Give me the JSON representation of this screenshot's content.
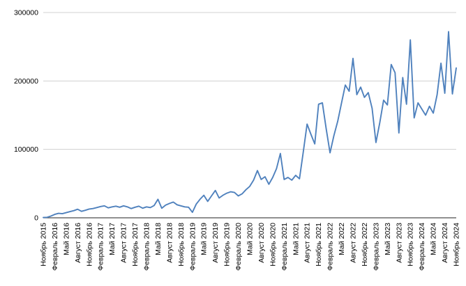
{
  "chart_data": {
    "type": "line",
    "title": "",
    "xlabel": "",
    "ylabel": "",
    "legend": "none",
    "grid": "horizontal",
    "ylim": [
      0,
      300000
    ],
    "y_ticks": [
      0,
      100000,
      200000,
      300000
    ],
    "y_tick_labels": [
      "0",
      "100000",
      "200000",
      "300000"
    ],
    "x_tick_every": 3,
    "x_tick_labels_visible": [
      "Ноябрь 2015",
      "Февраль 2016",
      "Май 2016",
      "Август 2016",
      "Ноябрь 2016",
      "Февраль 2017",
      "Май 2017",
      "Август 2017",
      "Ноябрь 2017",
      "Февраль 2018",
      "Май 2018",
      "Август 2018",
      "Ноябрь 2018",
      "Февраль 2019",
      "Май 2019",
      "Август 2019",
      "Ноябрь 2019",
      "Февраль 2020",
      "Май 2020",
      "Август 2020",
      "Ноябрь 2020",
      "Февраль 2021",
      "Май 2021",
      "Август 2021",
      "Ноябрь 2021",
      "Февраль 2022",
      "Май 2022",
      "Август 2022",
      "Ноябрь 2022",
      "Февраль 2023",
      "Май 2023",
      "Август 2023",
      "Ноябрь 2023",
      "Февраль 2024",
      "Май 2024",
      "Август 2024",
      "Ноябрь 2024"
    ],
    "categories": [
      "Ноябрь 2015",
      "Декабрь 2015",
      "Январь 2016",
      "Февраль 2016",
      "Март 2016",
      "Апрель 2016",
      "Май 2016",
      "Июнь 2016",
      "Июль 2016",
      "Август 2016",
      "Сентябрь 2016",
      "Октябрь 2016",
      "Ноябрь 2016",
      "Декабрь 2016",
      "Январь 2017",
      "Февраль 2017",
      "Март 2017",
      "Апрель 2017",
      "Май 2017",
      "Июнь 2017",
      "Июль 2017",
      "Август 2017",
      "Сентябрь 2017",
      "Октябрь 2017",
      "Ноябрь 2017",
      "Декабрь 2017",
      "Январь 2018",
      "Февраль 2018",
      "Март 2018",
      "Апрель 2018",
      "Май 2018",
      "Июнь 2018",
      "Июль 2018",
      "Август 2018",
      "Сентябрь 2018",
      "Октябрь 2018",
      "Ноябрь 2018",
      "Декабрь 2018",
      "Январь 2019",
      "Февраль 2019",
      "Март 2019",
      "Апрель 2019",
      "Май 2019",
      "Июнь 2019",
      "Июль 2019",
      "Август 2019",
      "Сентябрь 2019",
      "Октябрь 2019",
      "Ноябрь 2019",
      "Декабрь 2019",
      "Январь 2020",
      "Февраль 2020",
      "Март 2020",
      "Апрель 2020",
      "Май 2020",
      "Июнь 2020",
      "Июль 2020",
      "Август 2020",
      "Сентябрь 2020",
      "Октябрь 2020",
      "Ноябрь 2020",
      "Декабрь 2020",
      "Январь 2021",
      "Февраль 2021",
      "Март 2021",
      "Апрель 2021",
      "Май 2021",
      "Июнь 2021",
      "Июль 2021",
      "Август 2021",
      "Сентябрь 2021",
      "Октябрь 2021",
      "Ноябрь 2021",
      "Декабрь 2021",
      "Январь 2022",
      "Февраль 2022",
      "Март 2022",
      "Апрель 2022",
      "Май 2022",
      "Июнь 2022",
      "Июль 2022",
      "Август 2022",
      "Сентябрь 2022",
      "Октябрь 2022",
      "Ноябрь 2022",
      "Декабрь 2022",
      "Январь 2023",
      "Февраль 2023",
      "Март 2023",
      "Апрель 2023",
      "Май 2023",
      "Июнь 2023",
      "Июль 2023",
      "Август 2023",
      "Сентябрь 2023",
      "Октябрь 2023",
      "Ноябрь 2023",
      "Декабрь 2023",
      "Январь 2024",
      "Февраль 2024",
      "Март 2024",
      "Апрель 2024",
      "Май 2024",
      "Июнь 2024",
      "Июль 2024",
      "Август 2024",
      "Сентябрь 2024",
      "Октябрь 2024",
      "Ноябрь 2024"
    ],
    "series": [
      {
        "name": "series-1",
        "color": "#4f81bd",
        "values": [
          400,
          700,
          2500,
          5000,
          6500,
          6000,
          7500,
          9000,
          10500,
          12500,
          9500,
          11000,
          12800,
          13500,
          15000,
          16500,
          17500,
          14500,
          16000,
          17000,
          15500,
          17500,
          16000,
          13500,
          15500,
          17000,
          14000,
          16000,
          15000,
          18000,
          27000,
          14000,
          18500,
          21000,
          23000,
          19000,
          17500,
          16000,
          15500,
          8000,
          20000,
          27000,
          33000,
          24000,
          32000,
          40000,
          29000,
          33000,
          36000,
          38000,
          37000,
          32000,
          35000,
          41000,
          46000,
          55000,
          69000,
          56000,
          60000,
          49000,
          59000,
          72000,
          94000,
          56000,
          59000,
          55000,
          62000,
          57000,
          96000,
          137000,
          122000,
          108000,
          166000,
          168000,
          130000,
          95000,
          120000,
          141000,
          168000,
          194000,
          185000,
          233000,
          180000,
          191000,
          176000,
          183000,
          160000,
          110000,
          139000,
          172000,
          165000,
          224000,
          212000,
          124000,
          205000,
          166000,
          260000,
          146000,
          168000,
          159000,
          150000,
          163000,
          153000,
          180000,
          226000,
          182000,
          272000,
          181000,
          219000
        ]
      }
    ]
  },
  "layout_colors": {
    "background": "#ffffff",
    "gridline": "#d0d0d0",
    "axis_line": "#4d4d4d",
    "text": "#000000",
    "line": "#4f81bd"
  }
}
